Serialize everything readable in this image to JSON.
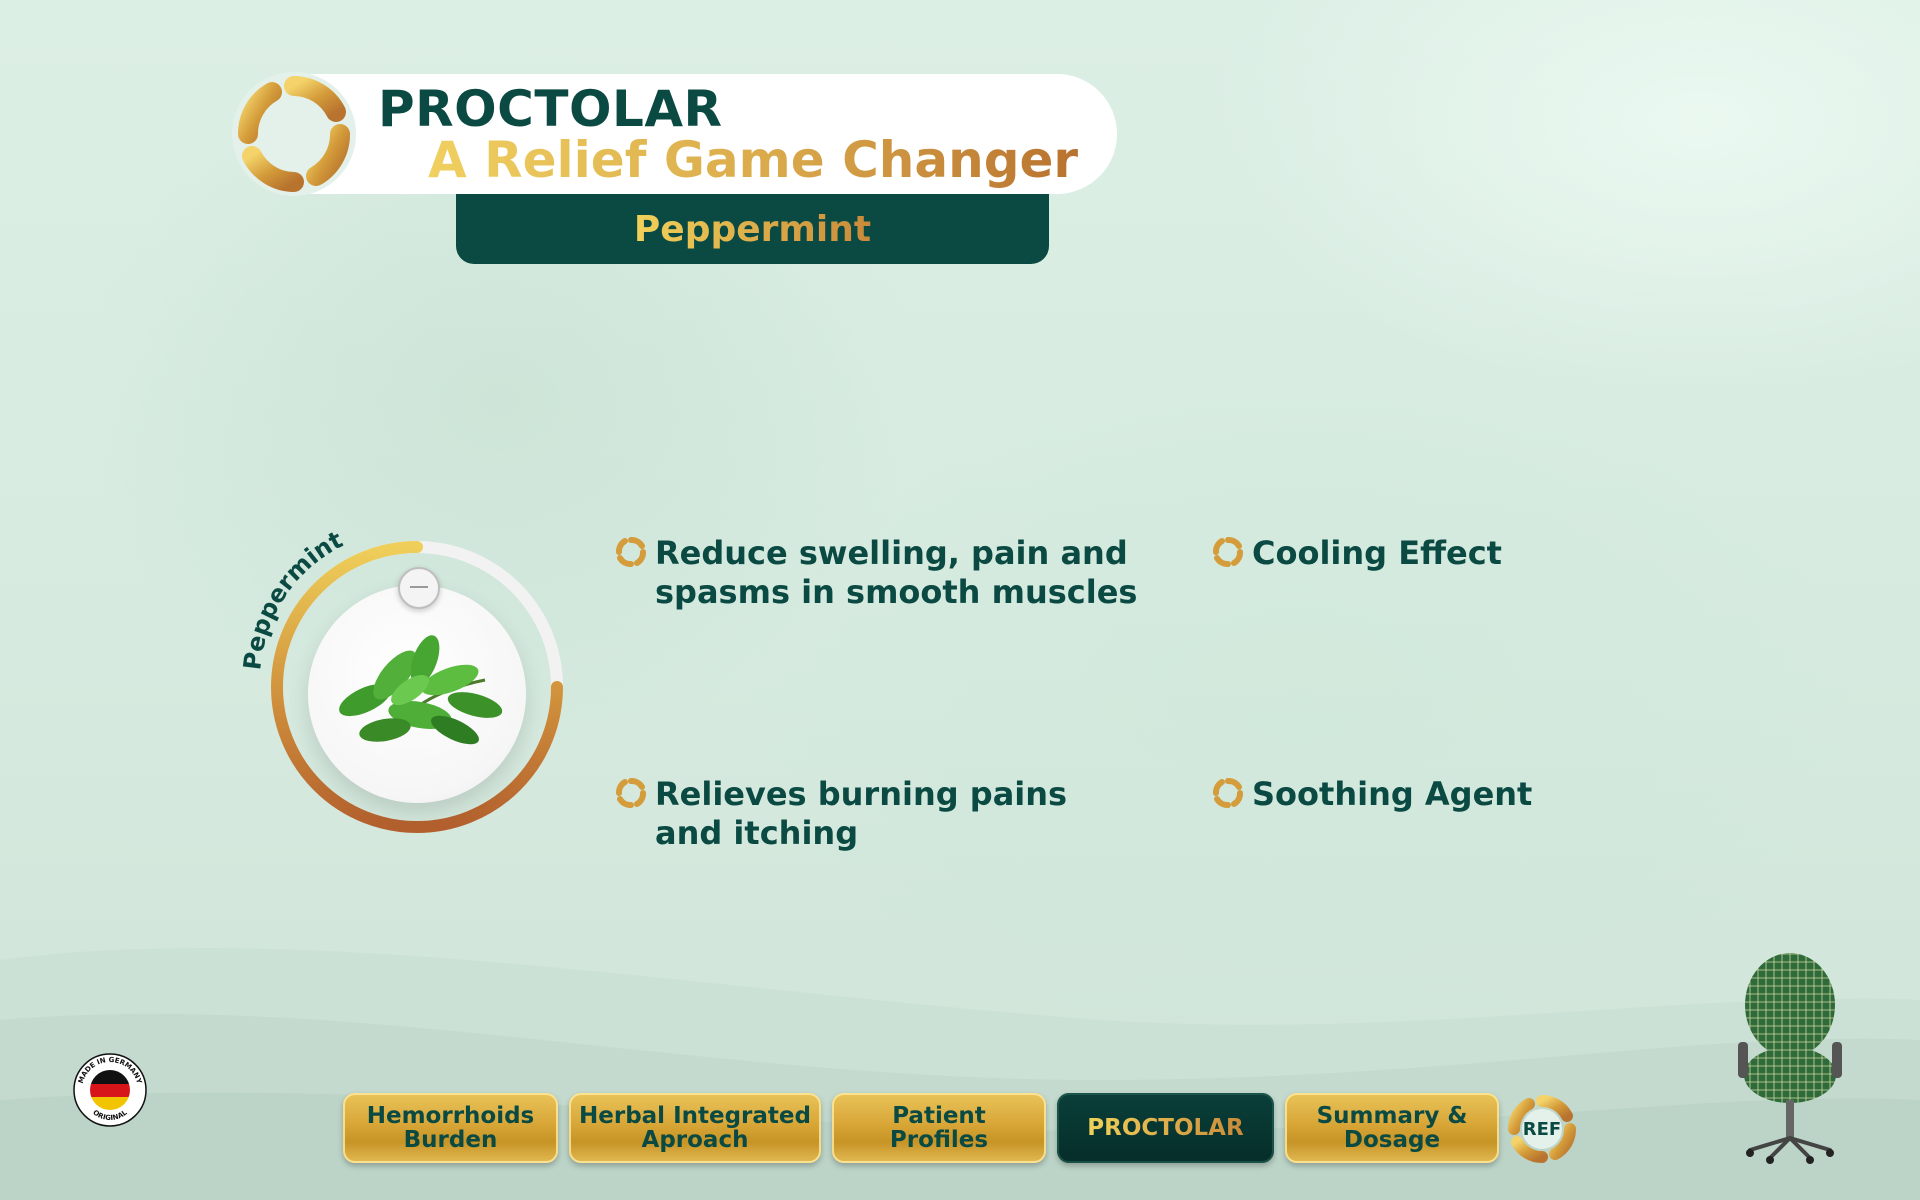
{
  "header": {
    "brand": "PROCTOLAR",
    "tagline": "A Relief Game Changer",
    "section_tab": "Peppermint"
  },
  "ingredient": {
    "ring_label": "Peppermint",
    "image": "peppermint-leaves",
    "progress_fraction": 0.75
  },
  "benefits": [
    {
      "line1": "Reduce swelling, pain and",
      "line2": "spasms in smooth muscles"
    },
    {
      "line1": "Cooling Effect",
      "line2": ""
    },
    {
      "line1": "Relieves burning pains",
      "line2": "and itching"
    },
    {
      "line1": "Soothing Agent",
      "line2": ""
    }
  ],
  "nav": {
    "items": [
      {
        "line1": "Hemorrhoids",
        "line2": "Burden"
      },
      {
        "line1": "Herbal Integrated",
        "line2": "Aproach"
      },
      {
        "line1": "Patient Profiles",
        "line2": ""
      },
      {
        "line1": "PROCTOLAR",
        "line2": ""
      },
      {
        "line1": "Summary &",
        "line2": "Dosage"
      }
    ],
    "active_index": 3,
    "ref_label": "REF"
  },
  "badge": {
    "top_text": "MADE IN GERMANY",
    "bottom_text": "ORIGINAL"
  },
  "colors": {
    "primary_dark": "#0b4a43",
    "gold_light": "#f0d060",
    "gold_dark": "#b8722f",
    "background": "#d9ece3"
  }
}
